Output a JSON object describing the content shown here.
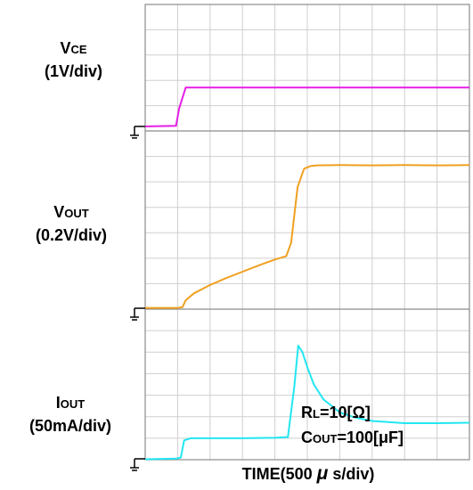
{
  "chart_data": {
    "type": "line",
    "x_divisions": 10,
    "xlabel_main": "TIME(500",
    "xlabel_mu": "μ",
    "xlabel_tail": "s/div)",
    "channels": [
      {
        "key": "vce",
        "label_main": "V",
        "label_sub": "CE",
        "scale": "(1V/div)",
        "color": "#e61ee6",
        "divisions": 5,
        "x": [
          0,
          0.95,
          1.05,
          1.25,
          2,
          4,
          6,
          8,
          10
        ],
        "y": [
          0.18,
          0.2,
          0.9,
          1.72,
          1.72,
          1.72,
          1.72,
          1.72,
          1.72
        ]
      },
      {
        "key": "vout",
        "label_main": "V",
        "label_sub": "OUT",
        "scale": "(0.2V/div)",
        "color": "#f0a020",
        "divisions": 7,
        "x": [
          0,
          1.0,
          1.15,
          1.25,
          1.5,
          2,
          2.5,
          3,
          3.5,
          4,
          4.35,
          4.5,
          4.7,
          4.9,
          5.1,
          5.3,
          6,
          7,
          8,
          9,
          10
        ],
        "y": [
          0.05,
          0.05,
          0.08,
          0.35,
          0.62,
          0.95,
          1.22,
          1.47,
          1.72,
          1.95,
          2.08,
          2.6,
          4.8,
          5.52,
          5.62,
          5.65,
          5.66,
          5.65,
          5.66,
          5.65,
          5.66
        ],
        "ground_mark": true
      },
      {
        "key": "iout",
        "label_main": "I",
        "label_sub": "OUT",
        "scale": "(50mA/div)",
        "color": "#22e6f2",
        "divisions": 7,
        "x": [
          0,
          0.95,
          1.1,
          1.2,
          1.4,
          2,
          3,
          4,
          4.4,
          4.6,
          4.72,
          4.85,
          5.0,
          5.2,
          5.5,
          6,
          6.5,
          7,
          8,
          9,
          10
        ],
        "y": [
          0.02,
          0.05,
          0.1,
          0.9,
          1.0,
          1.0,
          1.0,
          1.02,
          1.05,
          3.4,
          5.3,
          5.0,
          4.3,
          3.5,
          2.8,
          2.2,
          1.95,
          1.8,
          1.7,
          1.7,
          1.72
        ],
        "ground_mark": true
      }
    ],
    "annotation_rl_main": "R",
    "annotation_rl_sub": "L",
    "annotation_rl_value": "=10[Ω]",
    "annotation_cout_main": "C",
    "annotation_cout_sub": "OUT",
    "annotation_cout_value": "=100[μF]"
  }
}
